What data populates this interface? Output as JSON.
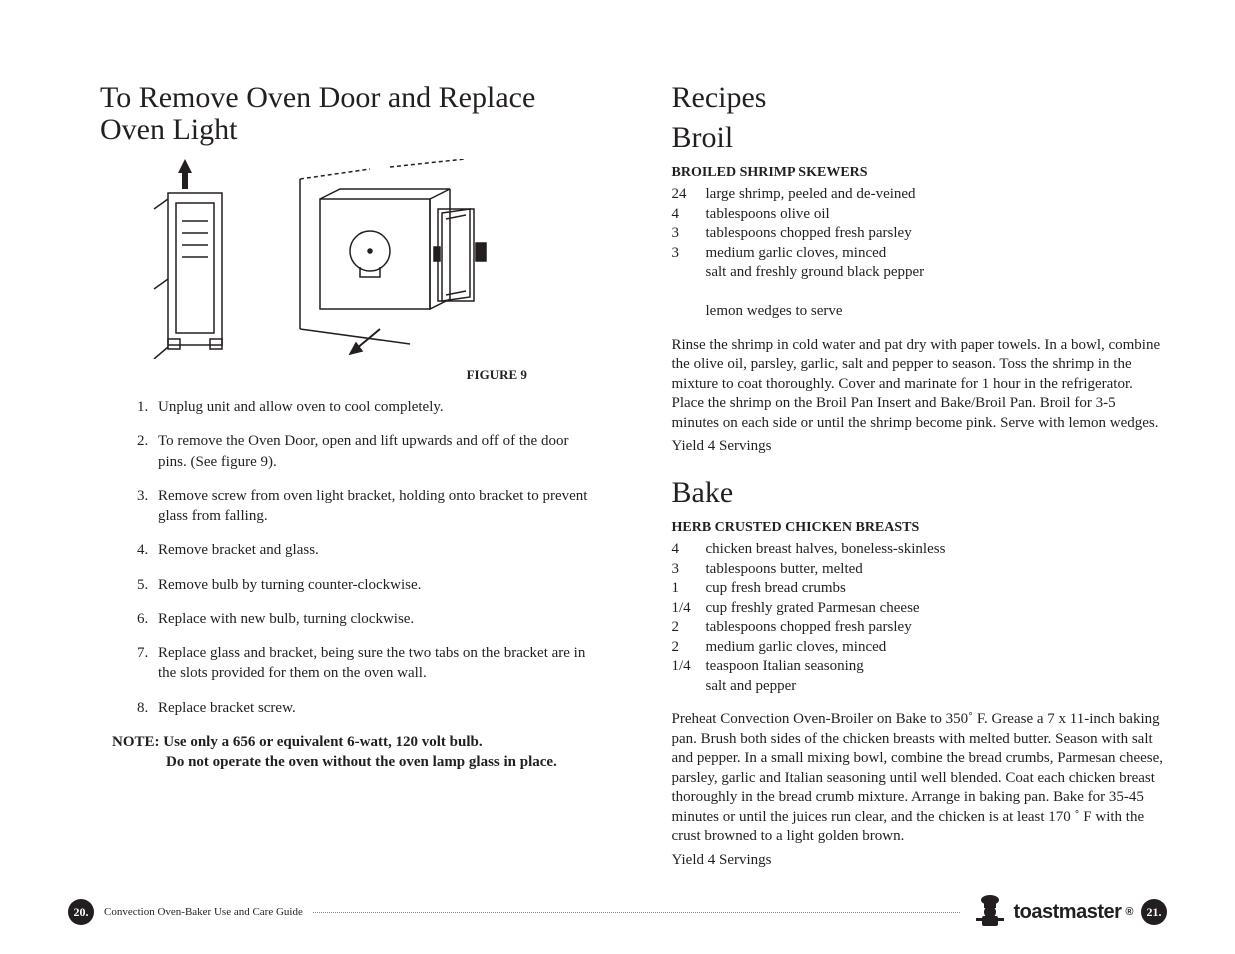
{
  "left": {
    "title": "To Remove Oven Door and Replace Oven Light",
    "figure_caption": "FIGURE 9",
    "steps": [
      "Unplug unit and allow oven to cool completely.",
      "To remove the Oven Door, open and lift upwards and off of the door pins. (See figure 9).",
      "Remove screw from oven light bracket, holding onto bracket to prevent glass from falling.",
      "Remove bracket and glass.",
      "Remove bulb by turning counter-clockwise.",
      "Replace with new bulb, turning clockwise.",
      "Replace glass and bracket, being sure the two tabs on the bracket are in the slots provided for them on the oven wall.",
      "Replace bracket screw."
    ],
    "note_line1": "NOTE: Use only a 656 or equivalent 6-watt, 120 volt bulb.",
    "note_line2": "Do not operate the oven without the oven lamp glass in place."
  },
  "right": {
    "recipes_title": "Recipes",
    "broil": {
      "title": "Broil",
      "recipe_name": "BROILED SHRIMP SKEWERS",
      "ingredients": [
        {
          "qty": "24",
          "item": "large shrimp, peeled and de-veined"
        },
        {
          "qty": "4",
          "item": "tablespoons olive oil"
        },
        {
          "qty": "3",
          "item": "tablespoons chopped fresh parsley"
        },
        {
          "qty": "3",
          "item": "medium garlic cloves, minced"
        },
        {
          "qty": "",
          "item": "salt and freshly ground black pepper"
        },
        {
          "qty": "",
          "item": ""
        },
        {
          "qty": "",
          "item": "lemon wedges to serve"
        }
      ],
      "body": "Rinse the shrimp in cold water and pat dry with paper towels. In a bowl, combine the olive oil, parsley, garlic, salt and pepper to season. Toss the shrimp in the mixture to coat thoroughly. Cover and marinate for 1 hour in the refrigerator. Place the shrimp on the Broil Pan Insert and Bake/Broil Pan. Broil for 3-5 minutes on each side or until the shrimp become pink. Serve with lemon wedges.",
      "yield": "Yield 4 Servings"
    },
    "bake": {
      "title": "Bake",
      "recipe_name": "HERB CRUSTED CHICKEN BREASTS",
      "ingredients": [
        {
          "qty": "4",
          "item": "chicken breast halves, boneless-skinless"
        },
        {
          "qty": "3",
          "item": "tablespoons butter, melted"
        },
        {
          "qty": "1",
          "item": "cup fresh bread crumbs"
        },
        {
          "qty": "1/4",
          "item": "cup freshly grated Parmesan cheese"
        },
        {
          "qty": "2",
          "item": "tablespoons chopped fresh parsley"
        },
        {
          "qty": "2",
          "item": "medium garlic cloves, minced"
        },
        {
          "qty": "1/4",
          "item": "teaspoon Italian seasoning"
        },
        {
          "qty": "",
          "item": "salt and pepper"
        }
      ],
      "body": "Preheat Convection Oven-Broiler on Bake to 350˚ F. Grease a 7 x 11-inch baking pan. Brush both sides of the chicken breasts with melted butter. Season with salt and pepper. In a small mixing bowl, combine the bread crumbs, Parmesan cheese, parsley, garlic and Italian seasoning until well blended. Coat each chicken breast thoroughly in the bread crumb mixture. Arrange in baking pan. Bake for 35-45 minutes or until the juices run clear, and the chicken is at least 170 ˚ F with the crust browned to a light golden brown.",
      "yield": "Yield 4 Servings"
    }
  },
  "footer": {
    "left_page": "20.",
    "right_page": "21.",
    "guide_title": "Convection Oven-Baker Use and Care Guide",
    "brand": "toastmaster"
  }
}
